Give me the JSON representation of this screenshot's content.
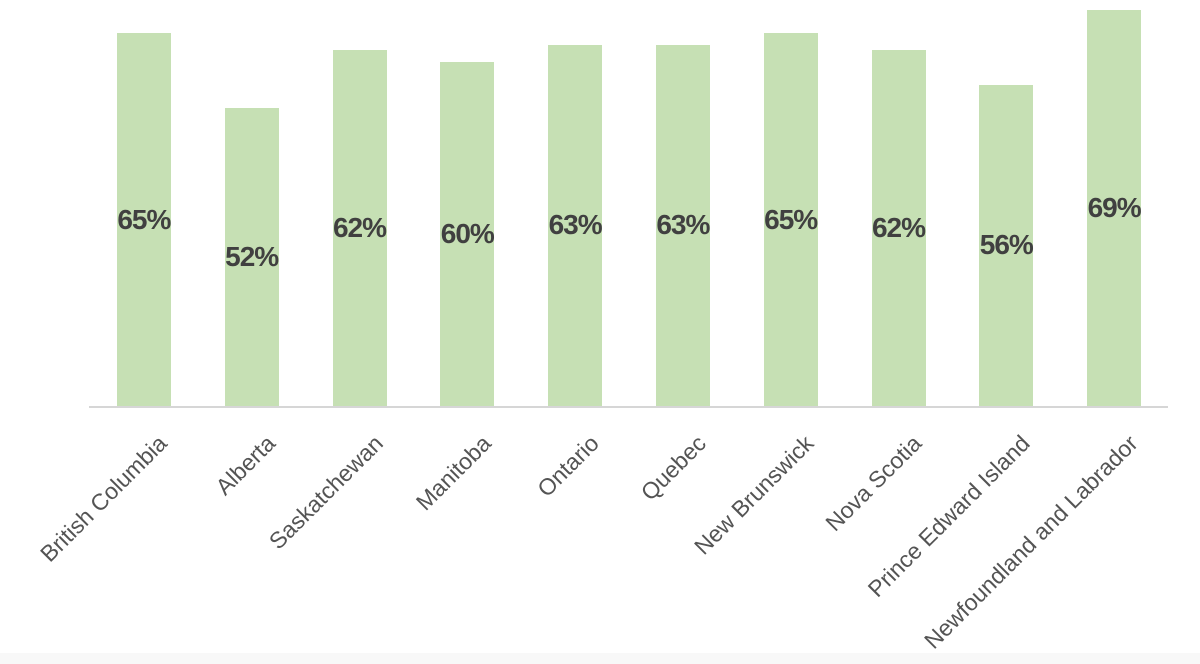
{
  "chart_data": {
    "type": "bar",
    "categories": [
      "British Columbia",
      "Alberta",
      "Saskatchewan",
      "Manitoba",
      "Ontario",
      "Quebec",
      "New Brunswick",
      "Nova Scotia",
      "Prince Edward Island",
      "Newfoundland and Labrador"
    ],
    "values": [
      65,
      52,
      62,
      60,
      63,
      63,
      65,
      62,
      56,
      69
    ],
    "data_labels": [
      "65%",
      "52%",
      "62%",
      "60%",
      "63%",
      "63%",
      "65%",
      "62%",
      "56%",
      "69%"
    ],
    "data_label_position": "inside-center",
    "title": "",
    "xlabel": "",
    "ylabel": "",
    "ylim": [
      0,
      70.8
    ],
    "grid": false,
    "legend": false,
    "tick_label_rotation_deg": -45,
    "colors": {
      "bar_fill": "#c6e0b4",
      "data_label": "#404040",
      "tick_label": "#545454",
      "axis_line": "#d6d6d6",
      "footer_strip": "#f8f8f8",
      "background": "#ffffff"
    }
  }
}
